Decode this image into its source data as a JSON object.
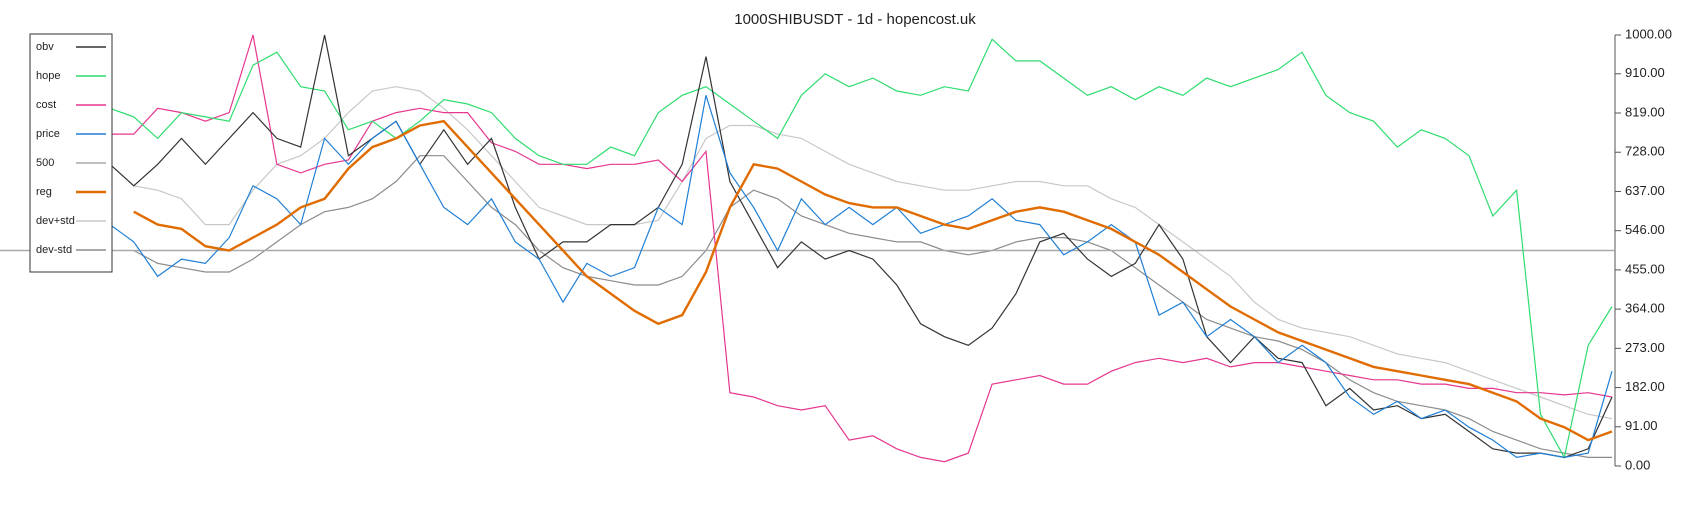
{
  "chart_data": {
    "type": "line",
    "title": "1000SHIBUSDT - 1d - hopencost.uk",
    "ylim": [
      0,
      1000
    ],
    "yticks": [
      {
        "value": 0,
        "label": "0.00"
      },
      {
        "value": 91,
        "label": "91.00"
      },
      {
        "value": 182,
        "label": "182.00"
      },
      {
        "value": 273,
        "label": "273.00"
      },
      {
        "value": 364,
        "label": "364.00"
      },
      {
        "value": 455,
        "label": "455.00"
      },
      {
        "value": 546,
        "label": "546.00"
      },
      {
        "value": 637,
        "label": "637.00"
      },
      {
        "value": 728,
        "label": "728.00"
      },
      {
        "value": 819,
        "label": "819.00"
      },
      {
        "value": 910,
        "label": "910.00"
      },
      {
        "value": 1000,
        "label": "1000.00"
      }
    ],
    "legend": "upper left",
    "series": [
      {
        "name": "obv",
        "color": "#333333",
        "values": [
          700,
          650,
          700,
          760,
          700,
          760,
          820,
          760,
          740,
          1000,
          720,
          760,
          800,
          700,
          780,
          700,
          760,
          600,
          480,
          520,
          520,
          560,
          560,
          600,
          700,
          950,
          660,
          560,
          460,
          520,
          480,
          500,
          480,
          420,
          330,
          300,
          280,
          320,
          400,
          520,
          540,
          480,
          440,
          470,
          560,
          480,
          300,
          240,
          300,
          250,
          240,
          140,
          180,
          130,
          140,
          110,
          120,
          80,
          40,
          30,
          30,
          20,
          40,
          160
        ]
      },
      {
        "name": "hope",
        "color": "#2edc6e",
        "values": [
          830,
          810,
          760,
          820,
          810,
          800,
          930,
          960,
          880,
          870,
          780,
          800,
          760,
          800,
          850,
          840,
          820,
          760,
          720,
          700,
          700,
          740,
          720,
          820,
          860,
          880,
          840,
          800,
          760,
          860,
          910,
          880,
          900,
          870,
          860,
          880,
          870,
          990,
          940,
          940,
          900,
          860,
          880,
          850,
          880,
          860,
          900,
          880,
          900,
          920,
          960,
          860,
          820,
          800,
          740,
          780,
          760,
          720,
          580,
          640,
          120,
          20,
          280,
          370
        ]
      },
      {
        "name": "cost",
        "color": "#e6368e",
        "values": [
          770,
          770,
          830,
          820,
          800,
          820,
          1000,
          700,
          680,
          700,
          710,
          800,
          820,
          830,
          820,
          820,
          750,
          730,
          700,
          700,
          690,
          700,
          700,
          710,
          660,
          730,
          170,
          160,
          140,
          130,
          140,
          60,
          70,
          40,
          20,
          10,
          30,
          190,
          200,
          210,
          190,
          190,
          220,
          240,
          250,
          240,
          250,
          230,
          240,
          240,
          230,
          220,
          210,
          200,
          200,
          190,
          190,
          180,
          180,
          170,
          170,
          165,
          170,
          160
        ]
      },
      {
        "name": "price",
        "color": "#1f7fd6",
        "values": [
          560,
          520,
          440,
          480,
          470,
          530,
          650,
          620,
          560,
          760,
          700,
          760,
          800,
          700,
          600,
          560,
          620,
          520,
          480,
          380,
          470,
          440,
          460,
          600,
          560,
          860,
          680,
          600,
          500,
          620,
          560,
          600,
          560,
          600,
          540,
          560,
          580,
          620,
          570,
          560,
          490,
          520,
          560,
          520,
          350,
          380,
          300,
          340,
          300,
          240,
          280,
          240,
          160,
          120,
          150,
          110,
          130,
          90,
          60,
          20,
          30,
          20,
          30,
          220
        ]
      },
      {
        "name": "500",
        "color": "#aaaaaa",
        "value": 500
      },
      {
        "name": "reg",
        "color": "#e06c00",
        "values": [
          null,
          590,
          560,
          550,
          510,
          500,
          530,
          560,
          600,
          620,
          690,
          740,
          760,
          790,
          800,
          740,
          680,
          620,
          560,
          500,
          440,
          400,
          360,
          330,
          350,
          450,
          600,
          700,
          690,
          660,
          630,
          610,
          600,
          600,
          580,
          560,
          550,
          570,
          590,
          600,
          590,
          570,
          550,
          520,
          490,
          450,
          410,
          370,
          340,
          310,
          290,
          270,
          250,
          230,
          220,
          210,
          200,
          190,
          170,
          150,
          110,
          90,
          60,
          80
        ]
      },
      {
        "name": "dev+std",
        "color": "#c8c8c8",
        "values": [
          null,
          650,
          640,
          620,
          560,
          560,
          640,
          700,
          720,
          760,
          820,
          870,
          880,
          870,
          830,
          780,
          720,
          660,
          600,
          580,
          560,
          560,
          560,
          570,
          660,
          760,
          790,
          790,
          770,
          760,
          730,
          700,
          680,
          660,
          650,
          640,
          640,
          650,
          660,
          660,
          650,
          650,
          620,
          600,
          560,
          520,
          480,
          440,
          380,
          340,
          320,
          310,
          300,
          280,
          260,
          250,
          240,
          220,
          200,
          180,
          160,
          140,
          120,
          110
        ]
      },
      {
        "name": "dev-std",
        "color": "#8c8c8c",
        "values": [
          null,
          500,
          470,
          460,
          450,
          450,
          480,
          520,
          560,
          590,
          600,
          620,
          660,
          720,
          720,
          660,
          600,
          560,
          500,
          460,
          440,
          430,
          420,
          420,
          440,
          500,
          600,
          640,
          620,
          580,
          560,
          540,
          530,
          520,
          520,
          500,
          490,
          500,
          520,
          530,
          530,
          520,
          500,
          460,
          420,
          380,
          340,
          320,
          300,
          290,
          270,
          240,
          200,
          170,
          150,
          140,
          130,
          110,
          80,
          60,
          40,
          30,
          20,
          20
        ]
      }
    ]
  }
}
